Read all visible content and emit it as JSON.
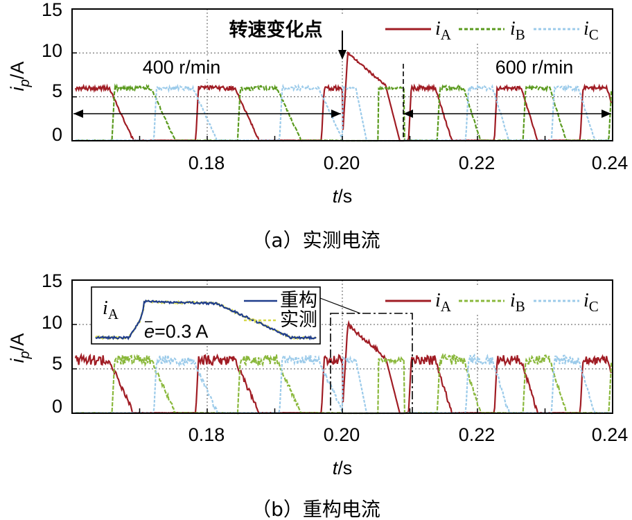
{
  "chart_data": [
    {
      "type": "line",
      "caption": "（a）实测电流",
      "xlabel_var": "t",
      "xlabel_unit": "/s",
      "ylabel_var": "i",
      "ylabel_sub": "p",
      "ylabel_unit": "/A",
      "xlim": [
        0.16,
        0.24
      ],
      "ylim": [
        0,
        15
      ],
      "xticks": [
        "0.18",
        "0.20",
        "0.22",
        "0.24"
      ],
      "yticks": [
        "15",
        "10",
        "5",
        "0"
      ],
      "grid": true,
      "legend": "top-right",
      "series": [
        {
          "name": "iA",
          "label_main": "i",
          "label_sub": "A",
          "color": "#a01c24"
        },
        {
          "name": "iB",
          "label_main": "i",
          "label_sub": "B",
          "color": "#5a9a1e"
        },
        {
          "name": "iC",
          "label_main": "i",
          "label_sub": "C",
          "color": "#9ccbea"
        }
      ],
      "annotations": {
        "change_point": "转速变化点",
        "speed_left": "400 r/min",
        "speed_right": "600 r/min"
      },
      "speed_change_time": 0.2,
      "steady_after_time": 0.2092,
      "steady_level": 6,
      "peak_level": 10,
      "phase_period_before": 0.0186,
      "phase_period_after": 0.0127
    },
    {
      "type": "line",
      "caption": "（b）重构电流",
      "xlabel_var": "t",
      "xlabel_unit": "/s",
      "ylabel_var": "i",
      "ylabel_sub": "p",
      "ylabel_unit": "/A",
      "xlim": [
        0.16,
        0.24
      ],
      "ylim": [
        0,
        15
      ],
      "xticks": [
        "0.18",
        "0.20",
        "0.22",
        "0.24"
      ],
      "yticks": [
        "15",
        "10",
        "5",
        "0"
      ],
      "grid": true,
      "legend": "top-right",
      "series": [
        {
          "name": "iA",
          "label_main": "i",
          "label_sub": "A",
          "color": "#a01c24"
        },
        {
          "name": "iB",
          "label_main": "i",
          "label_sub": "B",
          "color": "#8ab83c"
        },
        {
          "name": "iC",
          "label_main": "i",
          "label_sub": "C",
          "color": "#9ccbea"
        }
      ],
      "inset": {
        "label_main": "i",
        "label_sub": "A",
        "error_text": "=0.3 A",
        "error_symbol": "e",
        "legend": [
          {
            "name": "重构",
            "color": "#1f3d8c"
          },
          {
            "name": "实测",
            "color": "#d6d84a"
          }
        ]
      },
      "zoom_window": [
        0.198,
        0.21
      ]
    }
  ]
}
